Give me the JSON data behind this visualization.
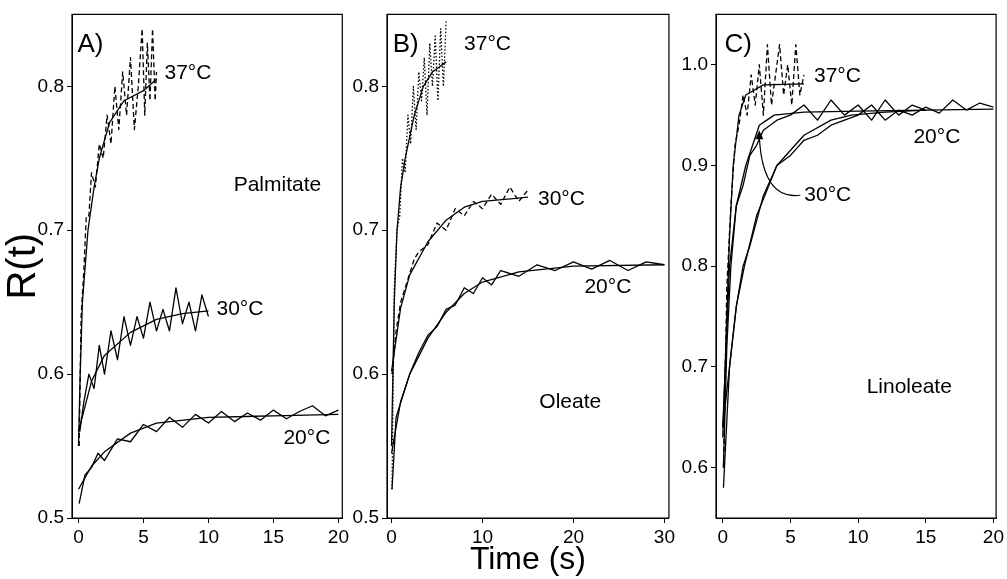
{
  "chart_data": [
    {
      "type": "line",
      "ylabel": "R(t)",
      "xlim": [
        -0.5,
        20.3
      ],
      "ylim": [
        0.5,
        0.85
      ],
      "xticks": [
        0,
        5,
        10,
        15,
        20
      ],
      "yticks": [
        0.5,
        0.6,
        0.7,
        0.8
      ],
      "grid": false,
      "legend": false,
      "marker": "none",
      "annotations": [
        "A)",
        "Palmitate",
        {
          "text": "37°C",
          "x": 6,
          "y": 0.805
        },
        {
          "text": "30°C",
          "x": 10,
          "y": 0.644
        },
        {
          "text": "20°C",
          "x": 20,
          "y": 0.572
        }
      ],
      "series": [
        {
          "color": "#000000",
          "line_style": "dashed",
          "x": [
            0.05,
            0.2,
            0.4,
            0.6,
            0.8,
            1.0,
            1.3,
            1.6,
            1.9,
            2.2,
            2.5,
            2.8,
            3.1,
            3.4,
            3.7,
            4.0,
            4.3,
            4.6,
            4.9,
            5.1,
            5.3,
            5.5,
            5.7,
            5.9,
            6.0
          ],
          "values": [
            0.55,
            0.64,
            0.67,
            0.71,
            0.71,
            0.74,
            0.73,
            0.76,
            0.75,
            0.78,
            0.76,
            0.8,
            0.77,
            0.81,
            0.78,
            0.82,
            0.77,
            0.8,
            0.84,
            0.78,
            0.83,
            0.79,
            0.84,
            0.79,
            0.81
          ]
        },
        {
          "color": "#000000",
          "line_style": "solid",
          "x": [
            0.1,
            0.4,
            0.8,
            1.2,
            1.6,
            2.0,
            2.5,
            3.0,
            3.5,
            4.0,
            4.5,
            5.0,
            5.5,
            6.0,
            6.5,
            7.0,
            7.5,
            8.0,
            8.5,
            9.0,
            9.5,
            10
          ],
          "values": [
            0.56,
            0.58,
            0.6,
            0.59,
            0.62,
            0.6,
            0.63,
            0.61,
            0.64,
            0.62,
            0.64,
            0.625,
            0.65,
            0.63,
            0.645,
            0.63,
            0.66,
            0.635,
            0.65,
            0.63,
            0.655,
            0.64
          ]
        },
        {
          "color": "#000000",
          "line_style": "solid",
          "x": [
            0.05,
            0.5,
            1,
            1.5,
            2,
            3,
            4,
            5,
            6,
            7,
            8,
            9,
            10,
            11,
            12,
            13,
            14,
            15,
            16,
            17,
            18,
            19,
            20
          ],
          "values": [
            0.51,
            0.53,
            0.535,
            0.545,
            0.54,
            0.555,
            0.553,
            0.565,
            0.56,
            0.57,
            0.563,
            0.572,
            0.566,
            0.574,
            0.567,
            0.573,
            0.568,
            0.575,
            0.569,
            0.574,
            0.578,
            0.571,
            0.575
          ]
        },
        {
          "color": "#000000",
          "line_style": "solid",
          "x": [
            0,
            0.13,
            0.3,
            0.73,
            1.2,
            1.6,
            2.4,
            3.5,
            5,
            6
          ],
          "values": [
            0.55,
            0.6,
            0.65,
            0.7,
            0.73,
            0.75,
            0.775,
            0.79,
            0.797,
            0.805
          ]
        },
        {
          "color": "#000000",
          "line_style": "solid",
          "x": [
            0,
            1,
            2,
            4,
            6,
            8,
            10
          ],
          "values": [
            0.56,
            0.595,
            0.613,
            0.629,
            0.638,
            0.642,
            0.644
          ]
        },
        {
          "color": "#000000",
          "line_style": "solid",
          "x": [
            0,
            1,
            2,
            4,
            6,
            10,
            15,
            20
          ],
          "values": [
            0.52,
            0.536,
            0.546,
            0.559,
            0.566,
            0.57,
            0.571,
            0.572
          ]
        }
      ]
    },
    {
      "type": "line",
      "xlabel": "Time (s)",
      "xlim": [
        -0.5,
        30.5
      ],
      "ylim": [
        0.5,
        0.85
      ],
      "xticks": [
        0,
        10,
        20,
        30
      ],
      "yticks": [
        0.5,
        0.6,
        0.7,
        0.8
      ],
      "grid": false,
      "legend": false,
      "marker": "none",
      "annotations": [
        "B)",
        "Oleate",
        {
          "text": "37°C",
          "x": 6,
          "y": 0.817
        },
        {
          "text": "30°C",
          "x": 15,
          "y": 0.723
        },
        {
          "text": "20°C",
          "x": 30,
          "y": 0.676
        }
      ],
      "series": [
        {
          "color": "#000000",
          "line_style": "dotted",
          "x": [
            0.05,
            0.3,
            0.6,
            0.9,
            1.2,
            1.5,
            1.8,
            2.1,
            2.4,
            2.7,
            3.0,
            3.3,
            3.6,
            3.9,
            4.2,
            4.5,
            4.8,
            5.1,
            5.4,
            5.7,
            6.0
          ],
          "values": [
            0.52,
            0.66,
            0.7,
            0.71,
            0.75,
            0.74,
            0.78,
            0.76,
            0.8,
            0.77,
            0.81,
            0.79,
            0.82,
            0.78,
            0.83,
            0.8,
            0.835,
            0.79,
            0.84,
            0.8,
            0.845
          ]
        },
        {
          "color": "#000000",
          "line_style": "dashed",
          "x": [
            0.05,
            0.5,
            1,
            1.5,
            2,
            2.5,
            3,
            4,
            5,
            6,
            7,
            8,
            9,
            10,
            11,
            12,
            13,
            14,
            15
          ],
          "values": [
            0.6,
            0.63,
            0.65,
            0.66,
            0.67,
            0.68,
            0.685,
            0.69,
            0.705,
            0.7,
            0.715,
            0.71,
            0.72,
            0.715,
            0.725,
            0.718,
            0.73,
            0.72,
            0.728
          ]
        },
        {
          "color": "#000000",
          "line_style": "solid",
          "x": [
            0.05,
            0.5,
            1,
            2,
            3,
            4,
            5,
            6,
            7,
            8,
            9,
            10,
            11,
            12,
            14,
            16,
            18,
            20,
            22,
            24,
            26,
            28,
            30
          ],
          "values": [
            0.52,
            0.57,
            0.58,
            0.6,
            0.615,
            0.627,
            0.633,
            0.645,
            0.648,
            0.66,
            0.656,
            0.667,
            0.662,
            0.672,
            0.668,
            0.676,
            0.672,
            0.678,
            0.673,
            0.679,
            0.672,
            0.678,
            0.676
          ]
        },
        {
          "color": "#000000",
          "line_style": "solid",
          "x": [
            0,
            0.15,
            0.3,
            0.6,
            1,
            1.5,
            2.5,
            3.5,
            4.5,
            6
          ],
          "values": [
            0.55,
            0.6,
            0.65,
            0.7,
            0.73,
            0.75,
            0.78,
            0.8,
            0.81,
            0.817
          ]
        },
        {
          "color": "#000000",
          "line_style": "solid",
          "x": [
            0,
            1,
            2,
            4,
            6,
            8,
            10,
            15
          ],
          "values": [
            0.602,
            0.646,
            0.669,
            0.692,
            0.707,
            0.716,
            0.72,
            0.723
          ]
        },
        {
          "color": "#000000",
          "line_style": "solid",
          "x": [
            0,
            1,
            2,
            4,
            6,
            8,
            10,
            14,
            20,
            30
          ],
          "values": [
            0.545,
            0.581,
            0.6,
            0.625,
            0.643,
            0.656,
            0.664,
            0.671,
            0.675,
            0.676
          ]
        }
      ]
    },
    {
      "type": "line",
      "xlim": [
        -0.5,
        20.2
      ],
      "ylim": [
        0.55,
        1.05
      ],
      "xticks": [
        0,
        5,
        10,
        15,
        20
      ],
      "yticks": [
        0.6,
        0.7,
        0.8,
        0.9,
        {
          "value": 1,
          "label": "1.0"
        }
      ],
      "grid": false,
      "legend": false,
      "marker": "none",
      "annotations": [
        "C)",
        "Linoleate",
        {
          "text": "37°C",
          "x": 6,
          "y": 0.981
        },
        {
          "text": "30°C",
          "x": 2.7,
          "y": 0.935
        },
        {
          "text": "20°C",
          "x": 20,
          "y": 0.956
        }
      ],
      "series": [
        {
          "color": "#000000",
          "line_style": "dashed",
          "x": [
            0.05,
            0.3,
            0.6,
            0.9,
            1.2,
            1.5,
            1.8,
            2.1,
            2.4,
            2.7,
            3.0,
            3.3,
            3.6,
            3.9,
            4.2,
            4.5,
            4.8,
            5.1,
            5.4,
            5.7,
            6.0
          ],
          "values": [
            0.6,
            0.78,
            0.86,
            0.92,
            0.94,
            0.97,
            0.95,
            0.99,
            0.96,
            1.0,
            0.95,
            1.02,
            0.96,
            0.99,
            1.02,
            0.97,
            1.0,
            0.96,
            1.02,
            0.97,
            0.99
          ]
        },
        {
          "color": "#000000",
          "line_style": "solid",
          "x": [
            0.05,
            0.3,
            0.6,
            1,
            1.5,
            2,
            2.5,
            3,
            3.5,
            4,
            5,
            6,
            7,
            8,
            9,
            10,
            11,
            12,
            13,
            14,
            15
          ],
          "values": [
            0.6,
            0.72,
            0.8,
            0.86,
            0.88,
            0.91,
            0.92,
            0.935,
            0.94,
            0.945,
            0.95,
            0.96,
            0.945,
            0.965,
            0.95,
            0.96,
            0.945,
            0.965,
            0.95,
            0.96,
            0.955
          ]
        },
        {
          "color": "#000000",
          "line_style": "solid",
          "x": [
            0.05,
            0.5,
            1,
            1.5,
            2,
            3,
            4,
            5,
            6,
            7,
            8,
            9,
            10,
            11,
            12,
            13,
            14,
            15,
            16,
            17,
            18,
            19,
            20
          ],
          "values": [
            0.58,
            0.7,
            0.76,
            0.8,
            0.82,
            0.87,
            0.9,
            0.91,
            0.925,
            0.93,
            0.94,
            0.945,
            0.95,
            0.96,
            0.945,
            0.955,
            0.95,
            0.958,
            0.952,
            0.965,
            0.955,
            0.962,
            0.958
          ]
        },
        {
          "color": "#000000",
          "line_style": "solid",
          "x": [
            0,
            0.3,
            0.5,
            0.77,
            1.2,
            1.7,
            3,
            6
          ],
          "values": [
            0.63,
            0.75,
            0.83,
            0.9,
            0.95,
            0.97,
            0.98,
            0.981
          ]
        },
        {
          "color": "#000000",
          "line_style": "solid",
          "x": [
            0,
            0.5,
            1,
            1.7,
            2.7,
            3.8,
            6,
            10,
            15
          ],
          "values": [
            0.64,
            0.8,
            0.86,
            0.9,
            0.94,
            0.95,
            0.953,
            0.954,
            0.955
          ]
        },
        {
          "color": "#000000",
          "line_style": "solid",
          "x": [
            0,
            0.5,
            1,
            1.6,
            2.5,
            4,
            6,
            8,
            9.5,
            12,
            15,
            20
          ],
          "values": [
            0.64,
            0.7,
            0.76,
            0.8,
            0.85,
            0.9,
            0.93,
            0.945,
            0.95,
            0.953,
            0.955,
            0.956
          ]
        }
      ]
    }
  ]
}
